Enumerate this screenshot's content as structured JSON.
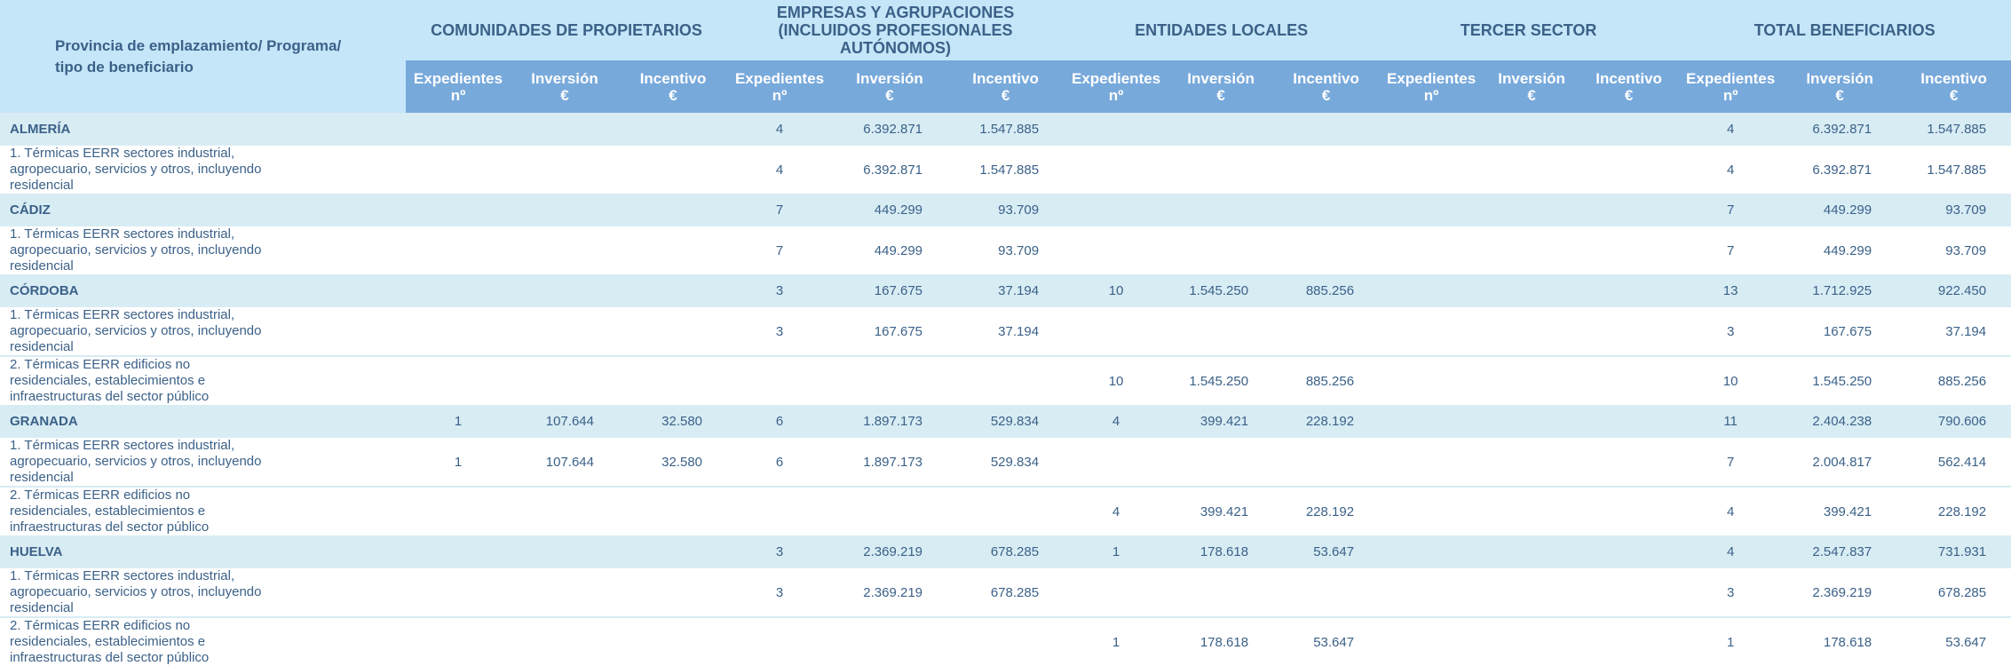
{
  "table": {
    "label_header": [
      "Provincia de emplazamiento/ Programa/",
      "tipo de beneficiario"
    ],
    "groups": [
      {
        "title": "COMUNIDADES DE PROPIETARIOS"
      },
      {
        "title": "EMPRESAS Y AGRUPACIONES (INCLUIDOS PROFESIONALES AUTÓNOMOS)"
      },
      {
        "title": "ENTIDADES LOCALES"
      },
      {
        "title": "TERCER SECTOR"
      },
      {
        "title": "TOTAL BENEFICIARIOS"
      }
    ],
    "subheaders": [
      {
        "line1": "Expedientes",
        "line2": "nº"
      },
      {
        "line1": "Inversión",
        "line2": "€"
      },
      {
        "line1": "Incentivo",
        "line2": "€"
      }
    ],
    "rows": [
      {
        "type": "province",
        "label": "ALMERÍA",
        "values": [
          "",
          "",
          "",
          "4",
          "6.392.871",
          "1.547.885",
          "",
          "",
          "",
          "",
          "",
          "",
          "4",
          "6.392.871",
          "1.547.885"
        ]
      },
      {
        "type": "program",
        "label": "1. Térmicas EERR sectores industrial, agropecuario, servicios y otros, incluyendo residencial",
        "values": [
          "",
          "",
          "",
          "4",
          "6.392.871",
          "1.547.885",
          "",
          "",
          "",
          "",
          "",
          "",
          "4",
          "6.392.871",
          "1.547.885"
        ]
      },
      {
        "type": "province",
        "label": "CÁDIZ",
        "values": [
          "",
          "",
          "",
          "7",
          "449.299",
          "93.709",
          "",
          "",
          "",
          "",
          "",
          "",
          "7",
          "449.299",
          "93.709"
        ]
      },
      {
        "type": "program",
        "label": "1. Térmicas EERR sectores industrial, agropecuario, servicios y otros, incluyendo residencial",
        "values": [
          "",
          "",
          "",
          "7",
          "449.299",
          "93.709",
          "",
          "",
          "",
          "",
          "",
          "",
          "7",
          "449.299",
          "93.709"
        ]
      },
      {
        "type": "province",
        "label": "CÓRDOBA",
        "values": [
          "",
          "",
          "",
          "3",
          "167.675",
          "37.194",
          "10",
          "1.545.250",
          "885.256",
          "",
          "",
          "",
          "13",
          "1.712.925",
          "922.450"
        ]
      },
      {
        "type": "program",
        "label": "1. Térmicas EERR sectores industrial, agropecuario, servicios y otros, incluyendo residencial",
        "values": [
          "",
          "",
          "",
          "3",
          "167.675",
          "37.194",
          "",
          "",
          "",
          "",
          "",
          "",
          "3",
          "167.675",
          "37.194"
        ]
      },
      {
        "type": "program",
        "label": "2. Térmicas EERR edificios no residenciales, establecimientos e infraestructuras del sector público",
        "values": [
          "",
          "",
          "",
          "",
          "",
          "",
          "10",
          "1.545.250",
          "885.256",
          "",
          "",
          "",
          "10",
          "1.545.250",
          "885.256"
        ]
      },
      {
        "type": "province",
        "label": "GRANADA",
        "values": [
          "1",
          "107.644",
          "32.580",
          "6",
          "1.897.173",
          "529.834",
          "4",
          "399.421",
          "228.192",
          "",
          "",
          "",
          "11",
          "2.404.238",
          "790.606"
        ]
      },
      {
        "type": "program",
        "label": "1. Térmicas EERR sectores industrial, agropecuario, servicios y otros, incluyendo residencial",
        "values": [
          "1",
          "107.644",
          "32.580",
          "6",
          "1.897.173",
          "529.834",
          "",
          "",
          "",
          "",
          "",
          "",
          "7",
          "2.004.817",
          "562.414"
        ]
      },
      {
        "type": "program",
        "label": "2. Térmicas EERR edificios no residenciales, establecimientos e infraestructuras del sector público",
        "values": [
          "",
          "",
          "",
          "",
          "",
          "",
          "4",
          "399.421",
          "228.192",
          "",
          "",
          "",
          "4",
          "399.421",
          "228.192"
        ]
      },
      {
        "type": "province",
        "label": "HUELVA",
        "values": [
          "",
          "",
          "",
          "3",
          "2.369.219",
          "678.285",
          "1",
          "178.618",
          "53.647",
          "",
          "",
          "",
          "4",
          "2.547.837",
          "731.931"
        ]
      },
      {
        "type": "program",
        "label": "1. Térmicas EERR sectores industrial, agropecuario, servicios y otros, incluyendo residencial",
        "values": [
          "",
          "",
          "",
          "3",
          "2.369.219",
          "678.285",
          "",
          "",
          "",
          "",
          "",
          "",
          "3",
          "2.369.219",
          "678.285"
        ]
      },
      {
        "type": "program",
        "label": "2. Térmicas EERR edificios no residenciales, establecimientos e infraestructuras del sector público",
        "values": [
          "",
          "",
          "",
          "",
          "",
          "",
          "1",
          "178.618",
          "53.647",
          "",
          "",
          "",
          "1",
          "178.618",
          "53.647"
        ]
      }
    ]
  },
  "colors": {
    "header_light": "#c5e6f8",
    "header_dark": "#78a9db",
    "province_band": "#d8ecf4",
    "text": "#3b6188"
  }
}
